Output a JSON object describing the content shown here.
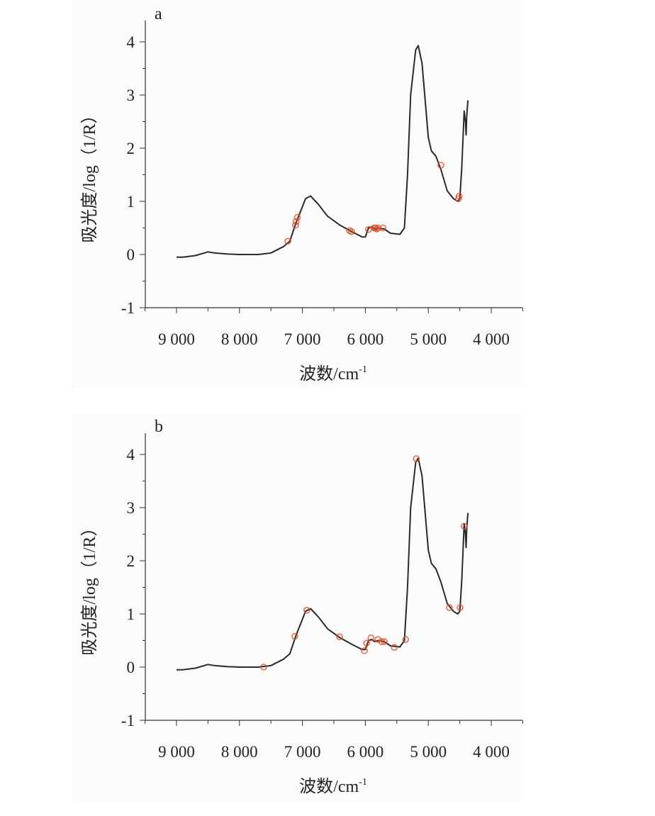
{
  "chart_data": [
    {
      "type": "line",
      "panel_label": "a",
      "xlabel": "波数/cm",
      "xlabel_sup": "-1",
      "ylabel": "吸光度/log（1/R）",
      "xlim": [
        9500,
        3500
      ],
      "ylim": [
        -1,
        4.4
      ],
      "x_ticks": [
        9000,
        8000,
        7000,
        6000,
        5000,
        4000
      ],
      "x_tick_labels": [
        "9 000",
        "8 000",
        "7 000",
        "6 000",
        "5 000",
        "4 000"
      ],
      "y_ticks": [
        -1,
        0,
        1,
        2,
        3,
        4
      ],
      "y_tick_labels": [
        "-1",
        "0",
        "1",
        "2",
        "3",
        "4"
      ],
      "line_color": "#2a2a2a",
      "marker_color": "#e0502a",
      "spectrum": {
        "x": [
          9000,
          8900,
          8700,
          8500,
          8400,
          8200,
          8000,
          7700,
          7500,
          7300,
          7200,
          7100,
          7000,
          6950,
          6870,
          6750,
          6600,
          6400,
          6200,
          6050,
          6000,
          5950,
          5900,
          5850,
          5800,
          5700,
          5600,
          5450,
          5380,
          5330,
          5280,
          5200,
          5160,
          5100,
          5050,
          5000,
          4950,
          4880,
          4800,
          4700,
          4600,
          4530,
          4500,
          4470,
          4430,
          4410,
          4400,
          4390,
          4370
        ],
        "y": [
          -0.05,
          -0.05,
          -0.02,
          0.05,
          0.03,
          0.01,
          0,
          0,
          0.03,
          0.15,
          0.25,
          0.6,
          0.9,
          1.05,
          1.1,
          0.95,
          0.72,
          0.55,
          0.42,
          0.33,
          0.33,
          0.5,
          0.52,
          0.48,
          0.5,
          0.48,
          0.4,
          0.38,
          0.5,
          1.5,
          3.0,
          3.85,
          3.93,
          3.6,
          2.9,
          2.2,
          1.95,
          1.85,
          1.6,
          1.2,
          1.05,
          1.0,
          1.05,
          1.6,
          2.7,
          2.5,
          2.25,
          2.6,
          2.9
        ]
      },
      "selected_points": {
        "x": [
          7230,
          7110,
          7100,
          7080,
          6250,
          6220,
          5950,
          5860,
          5840,
          5820,
          5800,
          5720,
          4800,
          4520,
          4510
        ],
        "y": [
          0.25,
          0.55,
          0.62,
          0.7,
          0.45,
          0.43,
          0.47,
          0.5,
          0.5,
          0.48,
          0.5,
          0.5,
          1.68,
          1.05,
          1.1
        ]
      }
    },
    {
      "type": "line",
      "panel_label": "b",
      "xlabel": "波数/cm",
      "xlabel_sup": "-1",
      "ylabel": "吸光度/log（1/R）",
      "xlim": [
        9500,
        3500
      ],
      "ylim": [
        -1,
        4.4
      ],
      "x_ticks": [
        9000,
        8000,
        7000,
        6000,
        5000,
        4000
      ],
      "x_tick_labels": [
        "9 000",
        "8 000",
        "7 000",
        "6 000",
        "5 000",
        "4 000"
      ],
      "y_ticks": [
        -1,
        0,
        1,
        2,
        3,
        4
      ],
      "y_tick_labels": [
        "-1",
        "0",
        "1",
        "2",
        "3",
        "4"
      ],
      "line_color": "#2a2a2a",
      "marker_color": "#e0502a",
      "spectrum": {
        "x": [
          9000,
          8900,
          8700,
          8500,
          8400,
          8200,
          8000,
          7700,
          7500,
          7300,
          7200,
          7100,
          7000,
          6950,
          6870,
          6750,
          6600,
          6400,
          6200,
          6050,
          6000,
          5950,
          5900,
          5850,
          5800,
          5700,
          5600,
          5450,
          5380,
          5330,
          5280,
          5200,
          5160,
          5100,
          5050,
          5000,
          4950,
          4880,
          4800,
          4700,
          4600,
          4530,
          4500,
          4470,
          4430,
          4410,
          4400,
          4390,
          4370
        ],
        "y": [
          -0.05,
          -0.05,
          -0.02,
          0.05,
          0.03,
          0.01,
          0,
          0,
          0.03,
          0.15,
          0.25,
          0.6,
          0.9,
          1.05,
          1.1,
          0.95,
          0.72,
          0.55,
          0.42,
          0.33,
          0.33,
          0.5,
          0.52,
          0.48,
          0.5,
          0.48,
          0.4,
          0.38,
          0.5,
          1.5,
          3.0,
          3.85,
          3.93,
          3.6,
          2.9,
          2.2,
          1.95,
          1.85,
          1.6,
          1.2,
          1.05,
          1.0,
          1.05,
          1.6,
          2.7,
          2.5,
          2.25,
          2.6,
          2.9
        ]
      },
      "selected_points": {
        "x": [
          7615,
          7120,
          6930,
          6410,
          6015,
          5980,
          5910,
          5800,
          5740,
          5700,
          5540,
          5360,
          5190,
          4665,
          4495,
          4430
        ],
        "y": [
          0,
          0.58,
          1.07,
          0.57,
          0.31,
          0.45,
          0.55,
          0.52,
          0.48,
          0.48,
          0.37,
          0.52,
          3.92,
          1.12,
          1.12,
          2.65
        ]
      }
    }
  ]
}
